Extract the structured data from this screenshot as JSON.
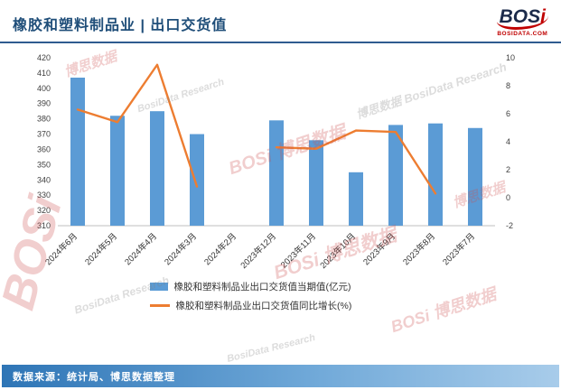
{
  "header": {
    "title": "橡胶和塑料制品业 | 出口交货值",
    "logo": {
      "text": "BOS",
      "text_i": "i",
      "subtext": "BOSIDATA.COM"
    }
  },
  "watermark": {
    "brand": "BOSi",
    "cn": "博思数据",
    "en": "BosiData Research"
  },
  "chart_data": {
    "type": "bar+line",
    "title": "橡胶和塑料制品业 | 出口交货值",
    "categories": [
      "2024年6月",
      "2024年5月",
      "2024年4月",
      "2024年3月",
      "2024年2月",
      "2023年12月",
      "2023年11月",
      "2023年10月",
      "2023年9月",
      "2023年8月",
      "2023年7月"
    ],
    "series": [
      {
        "name": "橡胶和塑料制品业出口交货值当期值(亿元)",
        "type": "bar",
        "axis": "left",
        "color": "#5B9BD5",
        "values": [
          407,
          382,
          385,
          370,
          null,
          379,
          366,
          345,
          376,
          377,
          374
        ]
      },
      {
        "name": "橡胶和塑料制品业出口交货值同比增长(%)",
        "type": "line",
        "axis": "right",
        "color": "#ED7D31",
        "values": [
          6.3,
          5.4,
          9.5,
          0.8,
          null,
          3.6,
          3.5,
          4.8,
          4.7,
          0.3,
          null
        ]
      }
    ],
    "left_axis": {
      "min": 310,
      "max": 420,
      "step": 10
    },
    "right_axis": {
      "min": -2,
      "max": 10,
      "step": 2
    },
    "grid": false,
    "legend_position": "bottom"
  },
  "footer": {
    "source": "数据来源：统计局、博思数据整理"
  },
  "colors": {
    "bar": "#5B9BD5",
    "line": "#ED7D31",
    "title": "#1F4E79",
    "axis_line": "#BFBFBF"
  }
}
